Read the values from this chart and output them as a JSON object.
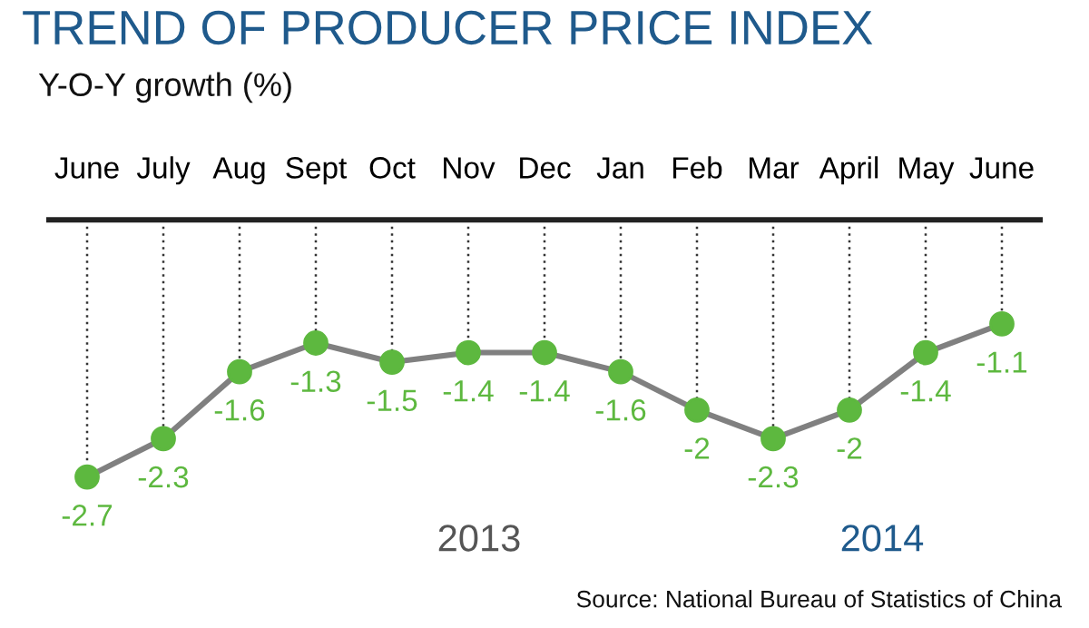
{
  "chart_data": {
    "type": "line",
    "title": "TREND OF PRODUCER PRICE INDEX",
    "subtitle": "Y-O-Y growth (%)",
    "categories": [
      "June",
      "July",
      "Aug",
      "Sept",
      "Oct",
      "Nov",
      "Dec",
      "Jan",
      "Feb",
      "Mar",
      "April",
      "May",
      "June"
    ],
    "series": [
      {
        "color": "#5db83f",
        "values": [
          -2.7,
          -2.3,
          -1.6,
          -1.3,
          -1.5,
          -1.4,
          -1.4,
          -1.6,
          -2,
          -2.3,
          -2,
          -1.4,
          -1.1
        ]
      }
    ],
    "marker": "circle",
    "data_labels": true,
    "grid": "x",
    "annotations": [
      "2013",
      "2014",
      "Source: National Bureau of Statistics of China"
    ]
  }
}
